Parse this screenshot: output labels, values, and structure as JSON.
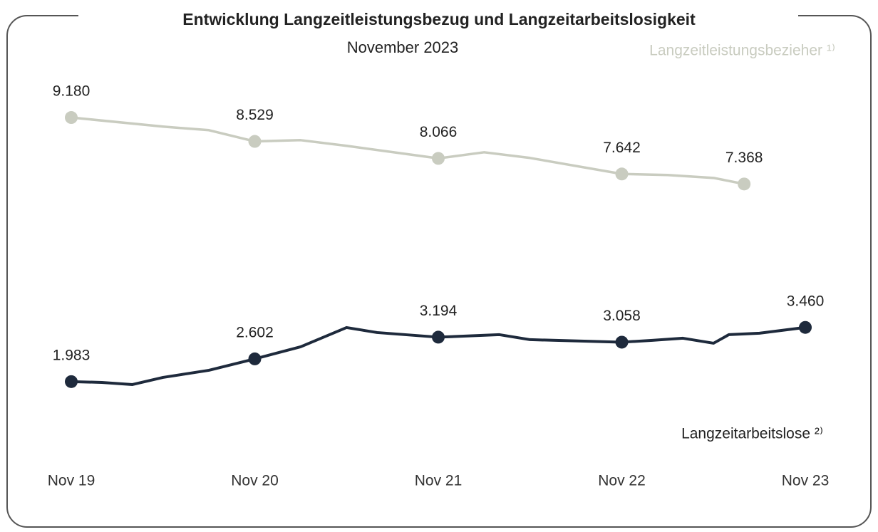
{
  "chart_data": {
    "type": "line",
    "title": "Entwicklung Langzeitleistungsbezug und Langzeitarbeitslosigkeit",
    "subtitle": "November 2023",
    "xlim": [
      0,
      48
    ],
    "xticks": [
      {
        "value": 0,
        "label": "Nov 19"
      },
      {
        "value": 12,
        "label": "Nov 20"
      },
      {
        "value": 24,
        "label": "Nov 21"
      },
      {
        "value": 36,
        "label": "Nov 22"
      },
      {
        "value": 48,
        "label": "Nov 23"
      }
    ],
    "ylim": [
      0,
      10500
    ],
    "series": [
      {
        "name": "Langzeitleistungsbezieher ¹⁾",
        "color": "#c9ccc0",
        "x": [
          0,
          6,
          9,
          12,
          15,
          18,
          24,
          27,
          30,
          36,
          39,
          42,
          44
        ],
        "values": [
          9180,
          8932,
          8835,
          8529,
          8563,
          8408,
          8066,
          8233,
          8078,
          7642,
          7612,
          7534,
          7368
        ],
        "value_labels": [
          "9.180",
          null,
          null,
          "8.529",
          null,
          null,
          "8.066",
          null,
          null,
          "7.642",
          null,
          null,
          "7.368"
        ]
      },
      {
        "name": "Langzeitarbeitslose ²⁾",
        "color": "#1e2a3c",
        "x": [
          0,
          2,
          4,
          6,
          9,
          12,
          15,
          18,
          20,
          24,
          28,
          30,
          36,
          38,
          40,
          42,
          43,
          45,
          48
        ],
        "values": [
          1983,
          1961,
          1903,
          2097,
          2291,
          2602,
          2932,
          3456,
          3320,
          3194,
          3262,
          3126,
          3058,
          3107,
          3165,
          3029,
          3262,
          3301,
          3460
        ],
        "value_labels": [
          "1.983",
          null,
          null,
          null,
          null,
          "2.602",
          null,
          null,
          null,
          "3.194",
          null,
          null,
          "3.058",
          null,
          null,
          null,
          null,
          null,
          "3.460"
        ]
      }
    ]
  }
}
